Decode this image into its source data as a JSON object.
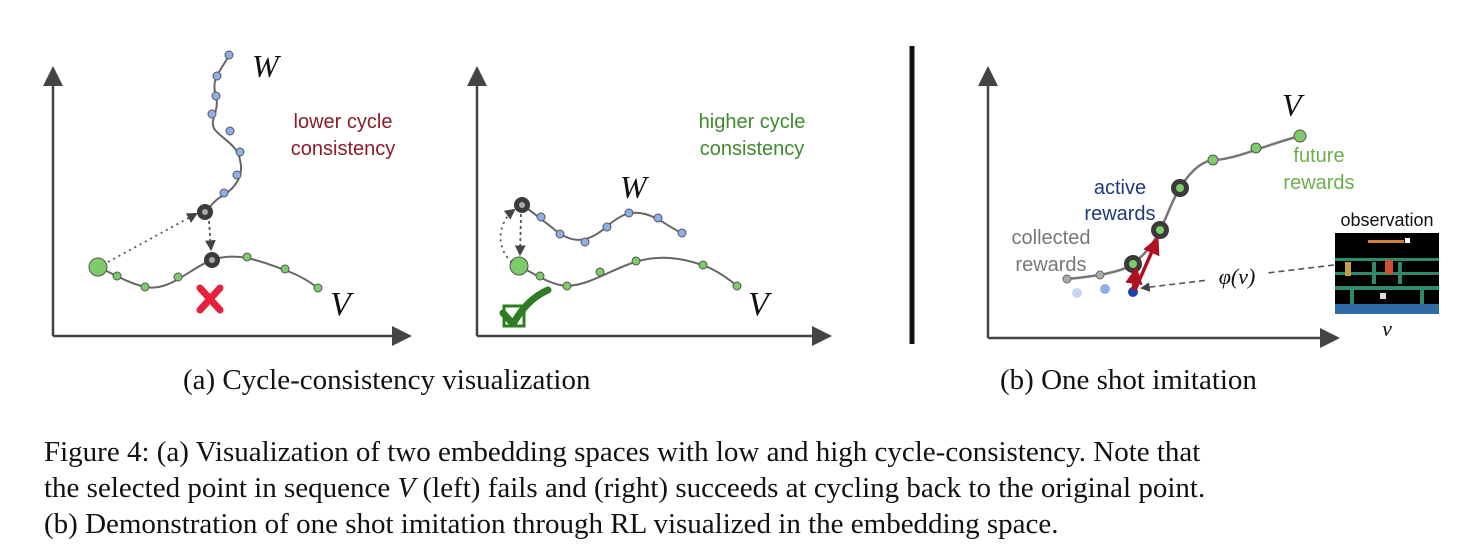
{
  "panel_a1": {
    "curve_w_label": "W",
    "curve_v_label": "V",
    "annotation_line1": "lower cycle",
    "annotation_line2": "consistency",
    "annotation_color": "#8b1c2c",
    "result_icon": "cross-icon",
    "result_color": "#e8213a"
  },
  "panel_a2": {
    "curve_w_label": "W",
    "curve_v_label": "V",
    "annotation_line1": "higher cycle",
    "annotation_line2": "consistency",
    "annotation_color": "#3f8a2e",
    "result_icon": "checkmark-icon",
    "result_color": "#2e7d22"
  },
  "panel_b": {
    "curve_v_label": "V",
    "future_line1": "future",
    "future_line2": "rewards",
    "active_line1": "active",
    "active_line2": "rewards",
    "collected_line1": "collected",
    "collected_line2": "rewards",
    "phi_label": "φ(v)",
    "observation_title": "observation",
    "observation_label": "v",
    "future_color": "#6ab04c",
    "active_color": "#1f3a7a",
    "collected_color": "#777777",
    "arrow_color": "#b01020"
  },
  "subcaptions": {
    "a": "(a) Cycle-consistency visualization",
    "b": "(b) One shot imitation"
  },
  "caption": {
    "line1": "Figure 4: (a) Visualization of two embedding spaces with low and high cycle-consistency. Note that",
    "line2_before": "the selected point in sequence ",
    "line2_var": "V",
    "line2_after": " (left) fails and (right) succeeds at cycling back to the original point.",
    "line3": "(b) Demonstration of one shot imitation through RL visualized in the embedding space."
  },
  "colors": {
    "w_points": "#8faee8",
    "v_points": "#7ccc6a",
    "curve": "#666666",
    "axis": "#444444",
    "selected": "#3a3a3a",
    "divider": "#111111"
  }
}
